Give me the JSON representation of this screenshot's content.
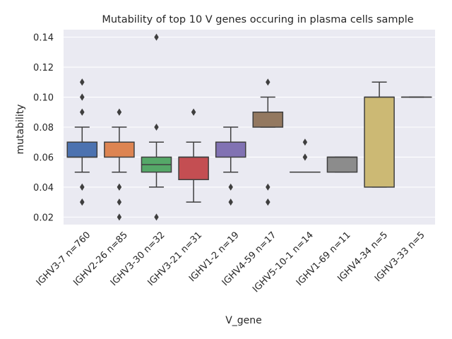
{
  "chart_data": {
    "type": "boxplot",
    "title": "Mutability of top 10 V genes occuring in plasma cells sample",
    "xlabel": "V_gene",
    "ylabel": "mutability",
    "ylim": [
      0.015,
      0.145
    ],
    "yticks": [
      "0.02",
      "0.04",
      "0.06",
      "0.08",
      "0.10",
      "0.12",
      "0.14"
    ],
    "grid": true,
    "categories": [
      "IGHV3-7 n=760",
      "IGHV2-26 n=85",
      "IGHV3-30 n=32",
      "IGHV3-21 n=31",
      "IGHV1-2 n=19",
      "IGHV4-59 n=17",
      "IGHV5-10-1 n=14",
      "IGHV1-69 n=11",
      "IGHV4-34 n=5",
      "IGHV3-33 n=5"
    ],
    "boxes": [
      {
        "whisker_low": 0.05,
        "q1": 0.06,
        "median": 0.06,
        "q3": 0.07,
        "whisker_high": 0.08,
        "outliers": [
          0.11,
          0.11,
          0.1,
          0.1,
          0.09,
          0.09,
          0.04,
          0.04,
          0.03,
          0.03
        ],
        "color": "#4c72b0"
      },
      {
        "whisker_low": 0.05,
        "q1": 0.06,
        "median": 0.07,
        "q3": 0.07,
        "whisker_high": 0.08,
        "outliers": [
          0.09,
          0.09,
          0.04,
          0.04,
          0.03,
          0.02
        ],
        "color": "#dd8452"
      },
      {
        "whisker_low": 0.04,
        "q1": 0.05,
        "median": 0.055,
        "q3": 0.06,
        "whisker_high": 0.07,
        "outliers": [
          0.14,
          0.08,
          0.02
        ],
        "color": "#55a868"
      },
      {
        "whisker_low": 0.03,
        "q1": 0.045,
        "median": 0.06,
        "q3": 0.06,
        "whisker_high": 0.07,
        "outliers": [
          0.09,
          0.09
        ],
        "color": "#c44e52"
      },
      {
        "whisker_low": 0.05,
        "q1": 0.06,
        "median": 0.07,
        "q3": 0.07,
        "whisker_high": 0.08,
        "outliers": [
          0.04,
          0.03
        ],
        "color": "#8172b3"
      },
      {
        "whisker_low": 0.08,
        "q1": 0.08,
        "median": 0.09,
        "q3": 0.09,
        "whisker_high": 0.1,
        "outliers": [
          0.11,
          0.04,
          0.03,
          0.03
        ],
        "color": "#937860"
      },
      {
        "whisker_low": 0.05,
        "q1": 0.05,
        "median": 0.05,
        "q3": 0.05,
        "whisker_high": 0.05,
        "outliers": [
          0.07,
          0.06,
          0.06
        ],
        "color": "#da8bc3"
      },
      {
        "whisker_low": 0.05,
        "q1": 0.05,
        "median": 0.06,
        "q3": 0.06,
        "whisker_high": 0.06,
        "outliers": [],
        "color": "#8c8c8c"
      },
      {
        "whisker_low": 0.04,
        "q1": 0.04,
        "median": 0.1,
        "q3": 0.1,
        "whisker_high": 0.11,
        "outliers": [],
        "color": "#ccb974"
      },
      {
        "whisker_low": 0.1,
        "q1": 0.1,
        "median": 0.1,
        "q3": 0.1,
        "whisker_high": 0.1,
        "outliers": [],
        "color": "#64b5cd"
      }
    ],
    "colors": {
      "background": "#eaeaf2",
      "grid": "#ffffff",
      "line": "#3f3f3f"
    }
  }
}
